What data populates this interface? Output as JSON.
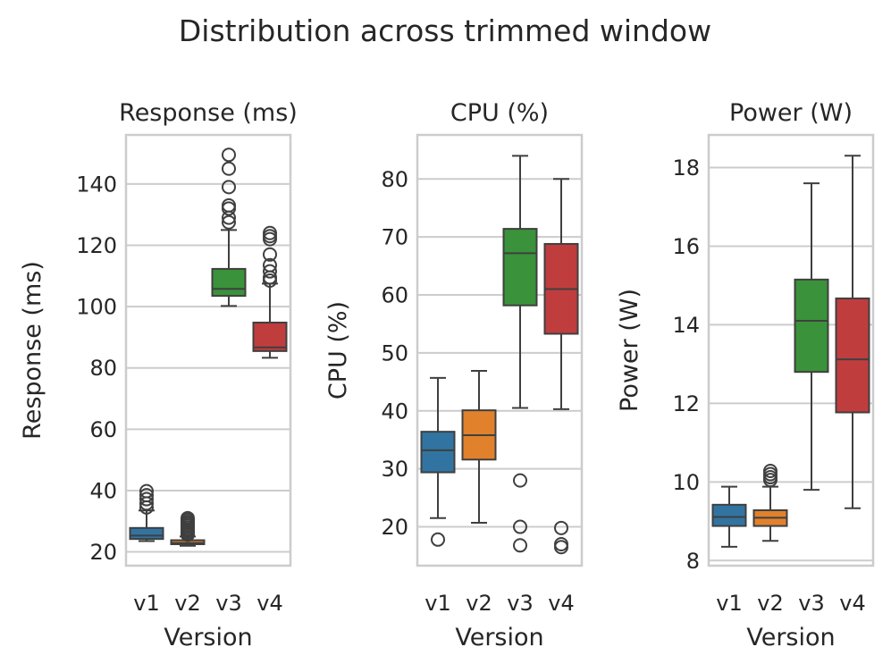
{
  "suptitle": "Distribution across trimmed window",
  "chart_data": [
    {
      "type": "box",
      "title": "Response (ms)",
      "xlabel": "Version",
      "ylabel": "Response (ms)",
      "categories": [
        "v1",
        "v2",
        "v3",
        "v4"
      ],
      "ylim": [
        15.5,
        156
      ],
      "yticks": [
        20,
        40,
        60,
        80,
        100,
        120,
        140
      ],
      "boxes": [
        {
          "category": "v1",
          "whisker_low": 23.5,
          "q1": 24.2,
          "median": 25.3,
          "q3": 27.8,
          "whisker_high": 33.5,
          "outliers": [
            34.5,
            35.8,
            37.2,
            38.5,
            39.8
          ],
          "color": "#3274a1"
        },
        {
          "category": "v2",
          "whisker_low": 22.0,
          "q1": 22.5,
          "median": 22.9,
          "q3": 23.8,
          "whisker_high": 25.0,
          "outliers": [
            25.6,
            26.2,
            26.8,
            27.4,
            28.0,
            28.6,
            29.2,
            29.8,
            30.4,
            31.0
          ],
          "color": "#e1812c"
        },
        {
          "category": "v3",
          "whisker_low": 100.2,
          "q1": 103.5,
          "median": 105.8,
          "q3": 112.3,
          "whisker_high": 125.0,
          "outliers": [
            127.5,
            129.0,
            132.0,
            133.0,
            139.0,
            145.0,
            149.5
          ],
          "color": "#3a923a"
        },
        {
          "category": "v4",
          "whisker_low": 83.3,
          "q1": 85.5,
          "median": 86.7,
          "q3": 94.8,
          "whisker_high": 107.5,
          "outliers": [
            108.5,
            109.5,
            111.5,
            113.5,
            117.0,
            122.0,
            123.0,
            124.0
          ],
          "color": "#c03d3e"
        }
      ]
    },
    {
      "type": "box",
      "title": "CPU (%)",
      "xlabel": "Version",
      "ylabel": "CPU (%)",
      "categories": [
        "v1",
        "v2",
        "v3",
        "v4"
      ],
      "ylim": [
        13.3,
        87.6
      ],
      "yticks": [
        20,
        30,
        40,
        50,
        60,
        70,
        80
      ],
      "boxes": [
        {
          "category": "v1",
          "whisker_low": 21.5,
          "q1": 29.4,
          "median": 33.2,
          "q3": 36.4,
          "whisker_high": 45.7,
          "outliers": [
            17.8
          ],
          "color": "#3274a1"
        },
        {
          "category": "v2",
          "whisker_low": 20.7,
          "q1": 31.6,
          "median": 35.8,
          "q3": 40.1,
          "whisker_high": 46.9,
          "outliers": [],
          "color": "#e1812c"
        },
        {
          "category": "v3",
          "whisker_low": 40.5,
          "q1": 58.2,
          "median": 67.2,
          "q3": 71.4,
          "whisker_high": 84.0,
          "outliers": [
            28.0,
            20.0,
            16.8
          ],
          "color": "#3a923a"
        },
        {
          "category": "v4",
          "whisker_low": 40.3,
          "q1": 53.3,
          "median": 61.0,
          "q3": 68.8,
          "whisker_high": 80.0,
          "outliers": [
            19.8,
            17.0,
            16.5
          ],
          "color": "#c03d3e"
        }
      ]
    },
    {
      "type": "box",
      "title": "Power (W)",
      "xlabel": "Version",
      "ylabel": "Power (W)",
      "categories": [
        "v1",
        "v2",
        "v3",
        "v4"
      ],
      "ylim": [
        7.87,
        18.83
      ],
      "yticks": [
        8,
        10,
        12,
        14,
        16,
        18
      ],
      "boxes": [
        {
          "category": "v1",
          "whisker_low": 8.35,
          "q1": 8.88,
          "median": 9.11,
          "q3": 9.42,
          "whisker_high": 9.88,
          "outliers": [],
          "color": "#3274a1"
        },
        {
          "category": "v2",
          "whisker_low": 8.5,
          "q1": 8.88,
          "median": 9.09,
          "q3": 9.28,
          "whisker_high": 9.88,
          "outliers": [
            10.05,
            10.12,
            10.2,
            10.28
          ],
          "color": "#e1812c"
        },
        {
          "category": "v3",
          "whisker_low": 9.8,
          "q1": 12.8,
          "median": 14.1,
          "q3": 15.15,
          "whisker_high": 17.6,
          "outliers": [],
          "color": "#3a923a"
        },
        {
          "category": "v4",
          "whisker_low": 9.33,
          "q1": 11.77,
          "median": 13.12,
          "q3": 14.67,
          "whisker_high": 18.3,
          "outliers": [],
          "color": "#c03d3e"
        }
      ]
    }
  ]
}
